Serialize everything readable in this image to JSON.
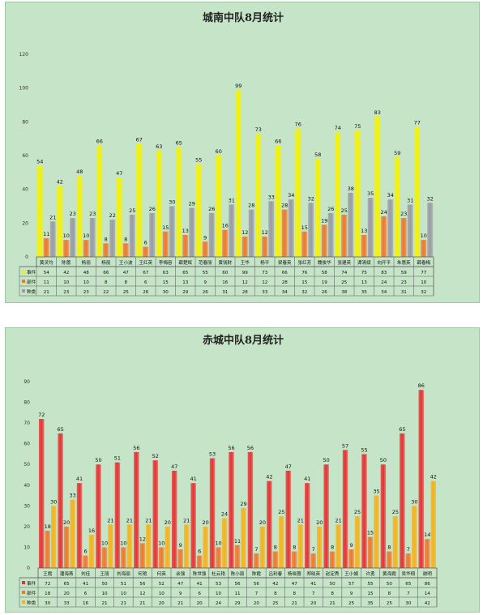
{
  "colors": {
    "background": "#c6e5c8",
    "yellow": "#f5f200",
    "orange": "#f0782a",
    "gray": "#9a9aa6",
    "red": "#e83232",
    "amber": "#f6b21a"
  },
  "chart_data": [
    {
      "type": "bar",
      "title": "城南中队8月统计",
      "ylim": [
        0,
        120
      ],
      "yticks": [
        0,
        20,
        40,
        60,
        80,
        100,
        120
      ],
      "grid": false,
      "legend": "data-table",
      "categories": [
        "黄灵均",
        "陈蕾",
        "杨丽",
        "杨丽",
        "王小波",
        "王红英",
        "李梅容",
        "薛楚辉",
        "范春丽",
        "黄钱财",
        "王华",
        "杨平",
        "梁春英",
        "张红芳",
        "魏俊华",
        "张建英",
        "谭清斌",
        "向开平",
        "朱惠英",
        "薛春梅"
      ],
      "series": [
        {
          "name": "事件",
          "color": "yellow",
          "values": [
            54,
            42,
            48,
            66,
            47,
            67,
            63,
            65,
            55,
            60,
            99,
            73,
            66,
            76,
            58,
            74,
            75,
            83,
            59,
            77
          ]
        },
        {
          "name": "部件",
          "color": "orange",
          "values": [
            11,
            10,
            10,
            8,
            8,
            6,
            15,
            13,
            9,
            16,
            12,
            12,
            28,
            15,
            19,
            25,
            13,
            24,
            23,
            10
          ]
        },
        {
          "name": "种类",
          "color": "gray",
          "values": [
            21,
            23,
            23,
            22,
            25,
            26,
            30,
            29,
            26,
            31,
            28,
            33,
            34,
            32,
            26,
            38,
            35,
            34,
            31,
            32
          ]
        }
      ]
    },
    {
      "type": "bar",
      "title": "赤城中队8月统计",
      "ylim": [
        0,
        90
      ],
      "yticks": [
        0,
        10,
        20,
        30,
        40,
        50,
        60,
        70,
        80,
        90
      ],
      "grid": false,
      "legend": "data-table",
      "categories": [
        "王霞",
        "潘海燕",
        "刘佳",
        "王丽",
        "刘海丽",
        "何艳",
        "何英",
        "余强",
        "陈世强",
        "杜云艳",
        "陈小丽",
        "陈霞",
        "吕利春",
        "杨晓蓉",
        "郑晓英",
        "赵定秀",
        "王小娟",
        "许勇",
        "黄海霞",
        "吴华翔",
        "谢明"
      ],
      "series": [
        {
          "name": "事件",
          "color": "red",
          "values": [
            72,
            65,
            41,
            50,
            51,
            56,
            52,
            47,
            41,
            53,
            56,
            56,
            42,
            47,
            41,
            50,
            57,
            55,
            50,
            65,
            86
          ]
        },
        {
          "name": "部件",
          "color": "orange",
          "values": [
            18,
            20,
            6,
            10,
            10,
            12,
            10,
            9,
            6,
            10,
            11,
            7,
            8,
            8,
            7,
            8,
            9,
            15,
            8,
            7,
            14
          ]
        },
        {
          "name": "种类",
          "color": "amber",
          "values": [
            30,
            33,
            16,
            21,
            21,
            21,
            20,
            21,
            20,
            24,
            29,
            20,
            25,
            21,
            20,
            21,
            25,
            35,
            25,
            30,
            42
          ]
        }
      ]
    }
  ]
}
